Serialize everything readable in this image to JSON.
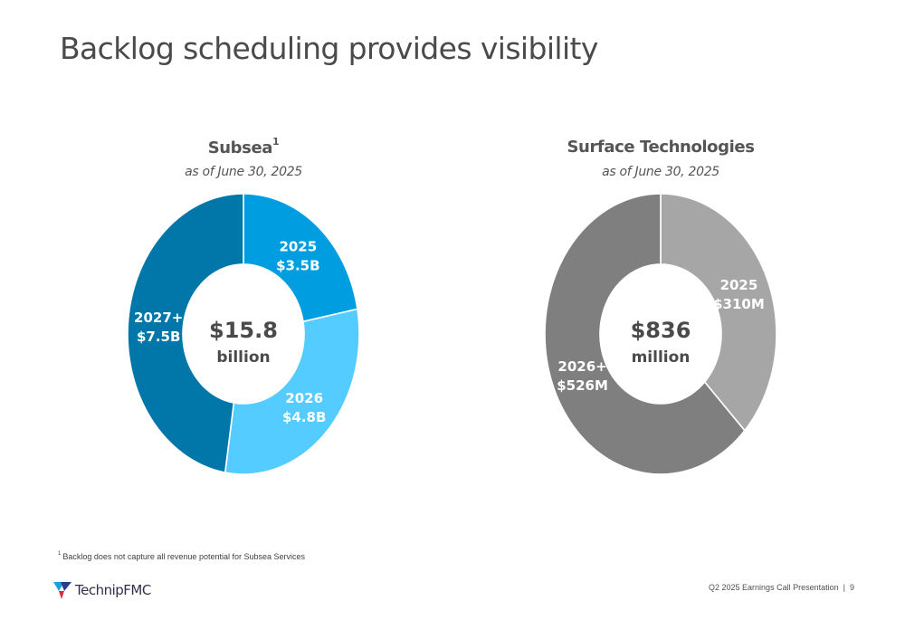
{
  "title": "Backlog scheduling provides visibility",
  "footnote": {
    "marker": "1",
    "text": "Backlog does not capture all revenue potential for Subsea Services"
  },
  "footer": {
    "presentation": "Q2 2025 Earnings Call Presentation",
    "separator": "|",
    "page_number": "9"
  },
  "logo": {
    "text": "TechnipFMC"
  },
  "chart_data": [
    {
      "type": "pie",
      "title": "Subsea",
      "title_superscript": "1",
      "subtitle": "as of June 30, 2025",
      "center_value": "$15.8",
      "center_unit": "billion",
      "slices": [
        {
          "year": "2025",
          "value_label": "$3.5B",
          "value": 3.5,
          "color": "#009ee0"
        },
        {
          "year": "2026",
          "value_label": "$4.8B",
          "value": 4.8,
          "color": "#55ccff"
        },
        {
          "year": "2027+",
          "value_label": "$7.5B",
          "value": 7.5,
          "color": "#0077a8"
        }
      ]
    },
    {
      "type": "pie",
      "title": "Surface Technologies",
      "subtitle": "as of June 30, 2025",
      "center_value": "$836",
      "center_unit": "million",
      "slices": [
        {
          "year": "2025",
          "value_label": "$310M",
          "value": 310,
          "color": "#a6a6a6"
        },
        {
          "year": "2026+",
          "value_label": "$526M",
          "value": 526,
          "color": "#7f7f7f"
        }
      ]
    }
  ]
}
